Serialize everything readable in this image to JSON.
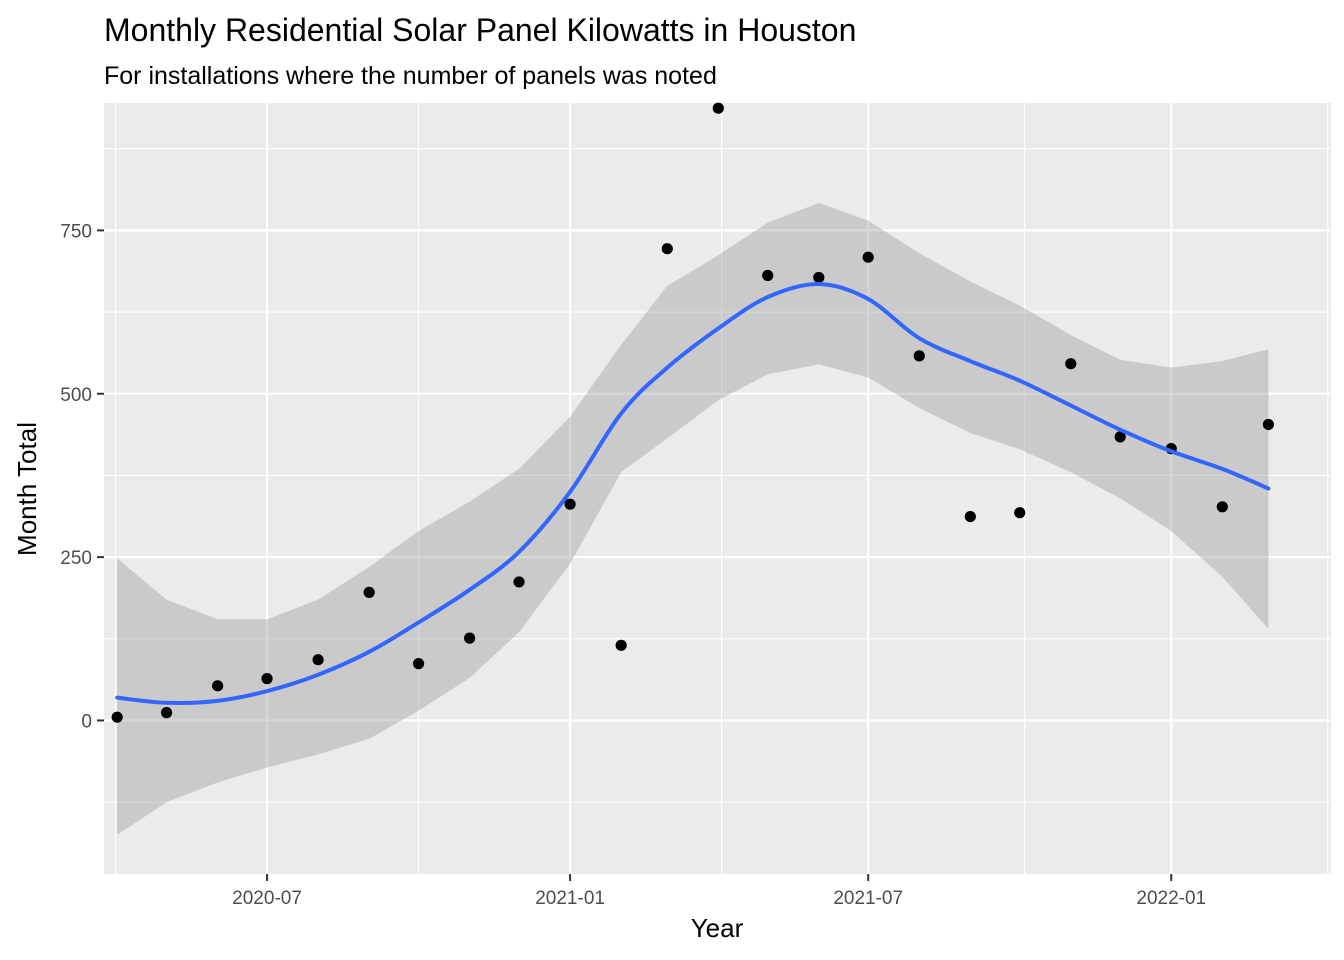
{
  "colors": {
    "panel_background": "#ebebeb",
    "grid_major": "#ffffff",
    "point": "#000000",
    "smooth_line": "#3366ff",
    "confidence_band": "#999999",
    "tick_text": "#4d4d4d"
  },
  "chart_data": {
    "type": "scatter",
    "title": "Monthly Residential Solar Panel Kilowatts in Houston",
    "subtitle": "For installations where the number of panels was noted",
    "xlabel": "Year",
    "ylabel": "Month Total",
    "grid": true,
    "legend": "none",
    "xlim": [
      "2020-03-24",
      "2022-04-08"
    ],
    "ylim": [
      -235,
      945
    ],
    "x_ticks": [
      "2020-07-01",
      "2021-01-01",
      "2021-07-01",
      "2022-01-01"
    ],
    "x_tick_labels": [
      "2020-07",
      "2021-01",
      "2021-07",
      "2022-01"
    ],
    "y_ticks": [
      0,
      250,
      500,
      750
    ],
    "y_tick_labels": [
      "0",
      "250",
      "500",
      "750"
    ],
    "points": {
      "x": [
        "2020-04-01",
        "2020-05-01",
        "2020-06-01",
        "2020-07-01",
        "2020-08-01",
        "2020-09-01",
        "2020-10-01",
        "2020-11-01",
        "2020-12-01",
        "2021-01-01",
        "2021-02-01",
        "2021-03-01",
        "2021-04-01",
        "2021-05-01",
        "2021-06-01",
        "2021-07-01",
        "2021-08-01",
        "2021-09-01",
        "2021-10-01",
        "2021-11-01",
        "2021-12-01",
        "2022-01-01",
        "2022-02-01",
        "2022-03-01"
      ],
      "y": [
        5,
        12,
        53,
        64,
        93,
        196,
        87,
        126,
        212,
        331,
        115,
        722,
        937,
        681,
        678,
        709,
        558,
        312,
        318,
        546,
        434,
        416,
        327,
        453
      ]
    },
    "smooth": {
      "method": "loess",
      "x": [
        "2020-04-01",
        "2020-05-01",
        "2020-06-01",
        "2020-07-01",
        "2020-08-01",
        "2020-09-01",
        "2020-10-01",
        "2020-11-01",
        "2020-12-01",
        "2021-01-01",
        "2021-02-01",
        "2021-03-01",
        "2021-04-01",
        "2021-05-01",
        "2021-06-01",
        "2021-07-01",
        "2021-08-01",
        "2021-09-01",
        "2021-10-01",
        "2021-11-01",
        "2021-12-01",
        "2022-01-01",
        "2022-02-01",
        "2022-03-01"
      ],
      "y": [
        35,
        27,
        30,
        45,
        70,
        105,
        150,
        200,
        258,
        350,
        470,
        540,
        600,
        648,
        668,
        645,
        585,
        550,
        520,
        482,
        445,
        412,
        385,
        355
      ],
      "ymin": [
        -175,
        -125,
        -95,
        -72,
        -52,
        -28,
        15,
        65,
        135,
        240,
        380,
        432,
        490,
        530,
        545,
        525,
        478,
        440,
        415,
        380,
        340,
        290,
        220,
        140
      ],
      "ymax": [
        248,
        185,
        155,
        155,
        185,
        235,
        290,
        335,
        385,
        465,
        575,
        665,
        712,
        762,
        792,
        765,
        715,
        672,
        635,
        590,
        552,
        540,
        550,
        568
      ]
    }
  }
}
